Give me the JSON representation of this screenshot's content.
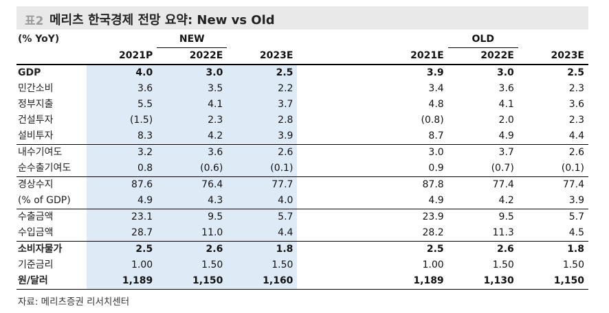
{
  "title": {
    "number": "표2",
    "text": "메리츠 한국경제 전망 요약: New vs Old"
  },
  "header": {
    "unit": "(% YoY)",
    "new_group": "NEW",
    "old_group": "OLD",
    "new_years": [
      "2021P",
      "2022E",
      "2023E"
    ],
    "old_years": [
      "2021E",
      "2022E",
      "2023E"
    ]
  },
  "rows": [
    {
      "label": "GDP",
      "new": [
        "4.0",
        "3.0",
        "2.5"
      ],
      "old": [
        "3.9",
        "3.0",
        "2.5"
      ]
    },
    {
      "label": "민간소비",
      "new": [
        "3.6",
        "3.5",
        "2.2"
      ],
      "old": [
        "3.4",
        "3.6",
        "2.3"
      ]
    },
    {
      "label": "정부지출",
      "new": [
        "5.5",
        "4.1",
        "3.7"
      ],
      "old": [
        "4.8",
        "4.1",
        "3.6"
      ]
    },
    {
      "label": "건설투자",
      "new": [
        "(1.5)",
        "2.3",
        "2.8"
      ],
      "old": [
        "(0.8)",
        "2.0",
        "2.3"
      ]
    },
    {
      "label": "설비투자",
      "new": [
        "8.3",
        "4.2",
        "3.9"
      ],
      "old": [
        "8.7",
        "4.9",
        "4.4"
      ]
    },
    {
      "label": "내수기여도",
      "new": [
        "3.2",
        "3.6",
        "2.6"
      ],
      "old": [
        "3.0",
        "3.7",
        "2.6"
      ]
    },
    {
      "label": "순수출기여도",
      "new": [
        "0.8",
        "(0.6)",
        "(0.1)"
      ],
      "old": [
        "0.9",
        "(0.7)",
        "(0.1)"
      ]
    },
    {
      "label": "경상수지",
      "new": [
        "87.6",
        "76.4",
        "77.7"
      ],
      "old": [
        "87.8",
        "77.4",
        "77.4"
      ]
    },
    {
      "label": "(% of GDP)",
      "new": [
        "4.9",
        "4.3",
        "4.0"
      ],
      "old": [
        "4.9",
        "4.2",
        "3.9"
      ]
    },
    {
      "label": "수출금액",
      "new": [
        "23.1",
        "9.5",
        "5.7"
      ],
      "old": [
        "23.9",
        "9.5",
        "5.7"
      ]
    },
    {
      "label": "수입금액",
      "new": [
        "28.7",
        "11.0",
        "4.4"
      ],
      "old": [
        "28.2",
        "11.3",
        "4.5"
      ]
    },
    {
      "label": "소비자물가",
      "new": [
        "2.5",
        "2.6",
        "1.8"
      ],
      "old": [
        "2.5",
        "2.6",
        "1.8"
      ]
    },
    {
      "label": "기준금리",
      "new": [
        "1.00",
        "1.50",
        "1.50"
      ],
      "old": [
        "1.00",
        "1.50",
        "1.50"
      ]
    },
    {
      "label": "원/달러",
      "new": [
        "1,189",
        "1,150",
        "1,160"
      ],
      "old": [
        "1,189",
        "1,130",
        "1,150"
      ]
    }
  ],
  "source": "자료: 메리츠증권 리서치센터"
}
